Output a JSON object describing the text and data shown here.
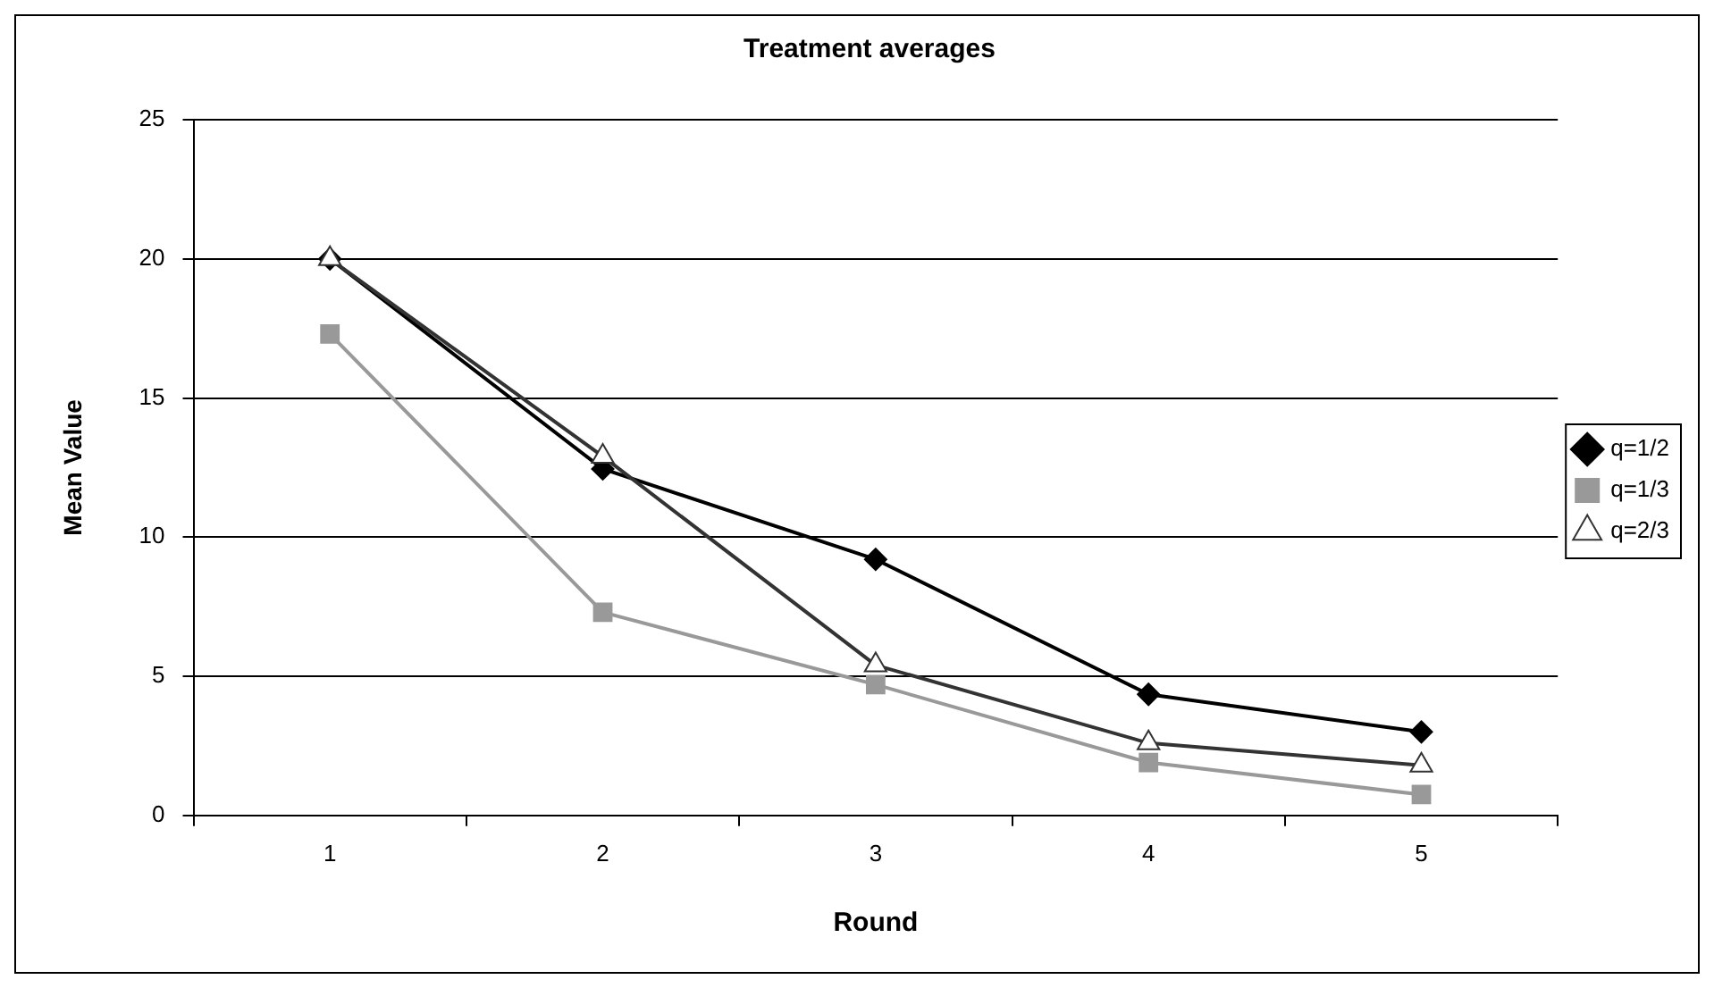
{
  "chart_data": {
    "type": "line",
    "title": "Treatment averages",
    "xlabel": "Round",
    "ylabel": "Mean Value",
    "categories": [
      "1",
      "2",
      "3",
      "4",
      "5"
    ],
    "series": [
      {
        "name": "q=1/2",
        "color": "#000000",
        "marker": "diamond",
        "values": [
          20,
          12.45,
          9.2,
          4.35,
          3
        ]
      },
      {
        "name": "q=1/3",
        "color": "#999999",
        "marker": "square",
        "values": [
          17.3,
          7.3,
          4.7,
          1.9,
          0.75
        ]
      },
      {
        "name": "q=2/3",
        "color": "#333333",
        "marker": "triangle",
        "values": [
          20,
          12.9,
          5.4,
          2.6,
          1.8
        ]
      }
    ],
    "ylim": [
      0,
      25
    ],
    "yticks": [
      0,
      5,
      10,
      15,
      20,
      25
    ],
    "grid": "y",
    "legend": "right"
  }
}
